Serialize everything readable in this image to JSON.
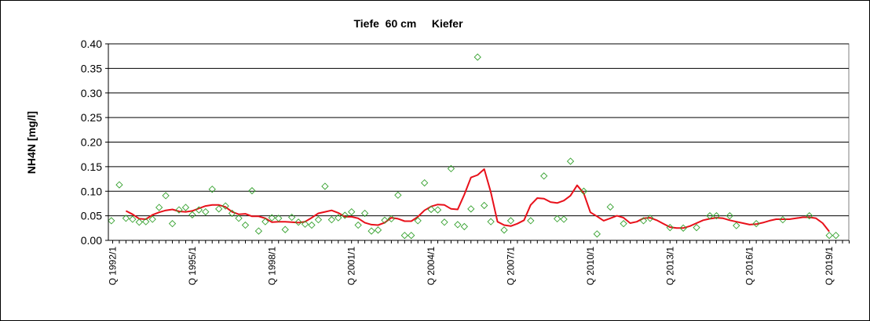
{
  "chart_data": {
    "type": "line",
    "title": "Tiefe  60 cm     Kiefer",
    "ylabel": "NH4N [mg/l]",
    "xlabel": "",
    "ylim": [
      0,
      0.4
    ],
    "grid": true,
    "y_ticks": [
      "0.00",
      "0.05",
      "0.10",
      "0.15",
      "0.20",
      "0.25",
      "0.30",
      "0.35",
      "0.40"
    ],
    "x_ticks": [
      {
        "label": "Q 1992/1",
        "q": 0
      },
      {
        "label": "Q 1995/1",
        "q": 12
      },
      {
        "label": "Q 1998/1",
        "q": 24
      },
      {
        "label": "Q 2001/1",
        "q": 36
      },
      {
        "label": "Q 2004/1",
        "q": 48
      },
      {
        "label": "Q 2007/1",
        "q": 60
      },
      {
        "label": "Q 2010/1",
        "q": 72
      },
      {
        "label": "Q 2013/1",
        "q": 84
      },
      {
        "label": "Q 2016/1",
        "q": 96
      },
      {
        "label": "Q 2019/1",
        "q": 108
      }
    ],
    "x_range_quarters": [
      0,
      111
    ],
    "series": [
      {
        "kind": "scatter",
        "color": "#33a02c",
        "marker": "diamond",
        "points": [
          [
            -0.2,
            0.04
          ],
          [
            1,
            0.113
          ],
          [
            2,
            0.045
          ],
          [
            3,
            0.043
          ],
          [
            4,
            0.037
          ],
          [
            5,
            0.038
          ],
          [
            6,
            0.043
          ],
          [
            7,
            0.067
          ],
          [
            8,
            0.091
          ],
          [
            9,
            0.034
          ],
          [
            10,
            0.062
          ],
          [
            11,
            0.067
          ],
          [
            12,
            0.052
          ],
          [
            13,
            0.062
          ],
          [
            14,
            0.058
          ],
          [
            15,
            0.104
          ],
          [
            16,
            0.064
          ],
          [
            17,
            0.07
          ],
          [
            18,
            0.055
          ],
          [
            19,
            0.045
          ],
          [
            20,
            0.031
          ],
          [
            21,
            0.101
          ],
          [
            22,
            0.019
          ],
          [
            23,
            0.038
          ],
          [
            24,
            0.046
          ],
          [
            25,
            0.045
          ],
          [
            26,
            0.022
          ],
          [
            27,
            0.047
          ],
          [
            28,
            0.037
          ],
          [
            29,
            0.033
          ],
          [
            30,
            0.031
          ],
          [
            31,
            0.042
          ],
          [
            32,
            0.11
          ],
          [
            33,
            0.042
          ],
          [
            34,
            0.046
          ],
          [
            35,
            0.051
          ],
          [
            36,
            0.058
          ],
          [
            37,
            0.031
          ],
          [
            38,
            0.055
          ],
          [
            39,
            0.019
          ],
          [
            40,
            0.021
          ],
          [
            41,
            0.041
          ],
          [
            42,
            0.044
          ],
          [
            43,
            0.092
          ],
          [
            44,
            0.01
          ],
          [
            45,
            0.01
          ],
          [
            46,
            0.04
          ],
          [
            47,
            0.117
          ],
          [
            48,
            0.063
          ],
          [
            49,
            0.062
          ],
          [
            50,
            0.037
          ],
          [
            51,
            0.146
          ],
          [
            52,
            0.032
          ],
          [
            53,
            0.028
          ],
          [
            54,
            0.064
          ],
          [
            55,
            0.373
          ],
          [
            56,
            0.071
          ],
          [
            57,
            0.038
          ],
          [
            59,
            0.021
          ],
          [
            60,
            0.04
          ],
          [
            63,
            0.04
          ],
          [
            65,
            0.131
          ],
          [
            67,
            0.044
          ],
          [
            68,
            0.043
          ],
          [
            69,
            0.161
          ],
          [
            71,
            0.1
          ],
          [
            73,
            0.013
          ],
          [
            75,
            0.068
          ],
          [
            77,
            0.034
          ],
          [
            80,
            0.04
          ],
          [
            81,
            0.045
          ],
          [
            84,
            0.026
          ],
          [
            86,
            0.025
          ],
          [
            88,
            0.026
          ],
          [
            90,
            0.05
          ],
          [
            91,
            0.05
          ],
          [
            93,
            0.05
          ],
          [
            94,
            0.03
          ],
          [
            97,
            0.034
          ],
          [
            101,
            0.042
          ],
          [
            105,
            0.05
          ],
          [
            108,
            0.01
          ],
          [
            109,
            0.01
          ]
        ]
      },
      {
        "kind": "line",
        "color": "#e8101a",
        "points": [
          [
            2,
            0.06
          ],
          [
            3,
            0.053
          ],
          [
            4,
            0.044
          ],
          [
            5,
            0.043
          ],
          [
            6,
            0.052
          ],
          [
            7,
            0.057
          ],
          [
            8,
            0.061
          ],
          [
            9,
            0.063
          ],
          [
            10,
            0.059
          ],
          [
            11,
            0.058
          ],
          [
            12,
            0.06
          ],
          [
            13,
            0.065
          ],
          [
            14,
            0.07
          ],
          [
            15,
            0.072
          ],
          [
            16,
            0.072
          ],
          [
            17,
            0.068
          ],
          [
            18,
            0.058
          ],
          [
            19,
            0.053
          ],
          [
            20,
            0.054
          ],
          [
            21,
            0.049
          ],
          [
            22,
            0.049
          ],
          [
            23,
            0.045
          ],
          [
            24,
            0.037
          ],
          [
            25,
            0.038
          ],
          [
            26,
            0.038
          ],
          [
            27,
            0.037
          ],
          [
            28,
            0.036
          ],
          [
            29,
            0.038
          ],
          [
            30,
            0.046
          ],
          [
            31,
            0.055
          ],
          [
            32,
            0.058
          ],
          [
            33,
            0.061
          ],
          [
            34,
            0.056
          ],
          [
            35,
            0.048
          ],
          [
            36,
            0.048
          ],
          [
            37,
            0.045
          ],
          [
            38,
            0.036
          ],
          [
            39,
            0.032
          ],
          [
            40,
            0.031
          ],
          [
            41,
            0.036
          ],
          [
            42,
            0.046
          ],
          [
            43,
            0.044
          ],
          [
            44,
            0.039
          ],
          [
            45,
            0.039
          ],
          [
            46,
            0.048
          ],
          [
            47,
            0.061
          ],
          [
            48,
            0.069
          ],
          [
            49,
            0.073
          ],
          [
            50,
            0.072
          ],
          [
            51,
            0.064
          ],
          [
            52,
            0.063
          ],
          [
            53,
            0.093
          ],
          [
            54,
            0.128
          ],
          [
            55,
            0.133
          ],
          [
            56,
            0.145
          ],
          [
            57,
            0.098
          ],
          [
            58,
            0.038
          ],
          [
            59,
            0.031
          ],
          [
            60,
            0.029
          ],
          [
            61,
            0.034
          ],
          [
            62,
            0.041
          ],
          [
            63,
            0.072
          ],
          [
            64,
            0.086
          ],
          [
            65,
            0.085
          ],
          [
            66,
            0.078
          ],
          [
            67,
            0.076
          ],
          [
            68,
            0.081
          ],
          [
            69,
            0.091
          ],
          [
            70,
            0.112
          ],
          [
            71,
            0.096
          ],
          [
            72,
            0.057
          ],
          [
            73,
            0.049
          ],
          [
            74,
            0.04
          ],
          [
            75,
            0.045
          ],
          [
            76,
            0.05
          ],
          [
            77,
            0.046
          ],
          [
            78,
            0.035
          ],
          [
            79,
            0.038
          ],
          [
            80,
            0.045
          ],
          [
            81,
            0.046
          ],
          [
            82,
            0.041
          ],
          [
            83,
            0.034
          ],
          [
            84,
            0.027
          ],
          [
            85,
            0.025
          ],
          [
            86,
            0.025
          ],
          [
            87,
            0.029
          ],
          [
            88,
            0.035
          ],
          [
            89,
            0.041
          ],
          [
            90,
            0.044
          ],
          [
            91,
            0.046
          ],
          [
            92,
            0.045
          ],
          [
            93,
            0.041
          ],
          [
            94,
            0.038
          ],
          [
            95,
            0.035
          ],
          [
            96,
            0.032
          ],
          [
            97,
            0.033
          ],
          [
            98,
            0.036
          ],
          [
            99,
            0.04
          ],
          [
            100,
            0.043
          ],
          [
            101,
            0.043
          ],
          [
            102,
            0.043
          ],
          [
            103,
            0.045
          ],
          [
            104,
            0.047
          ],
          [
            105,
            0.047
          ],
          [
            106,
            0.045
          ],
          [
            107,
            0.035
          ],
          [
            108,
            0.018
          ]
        ]
      }
    ]
  }
}
